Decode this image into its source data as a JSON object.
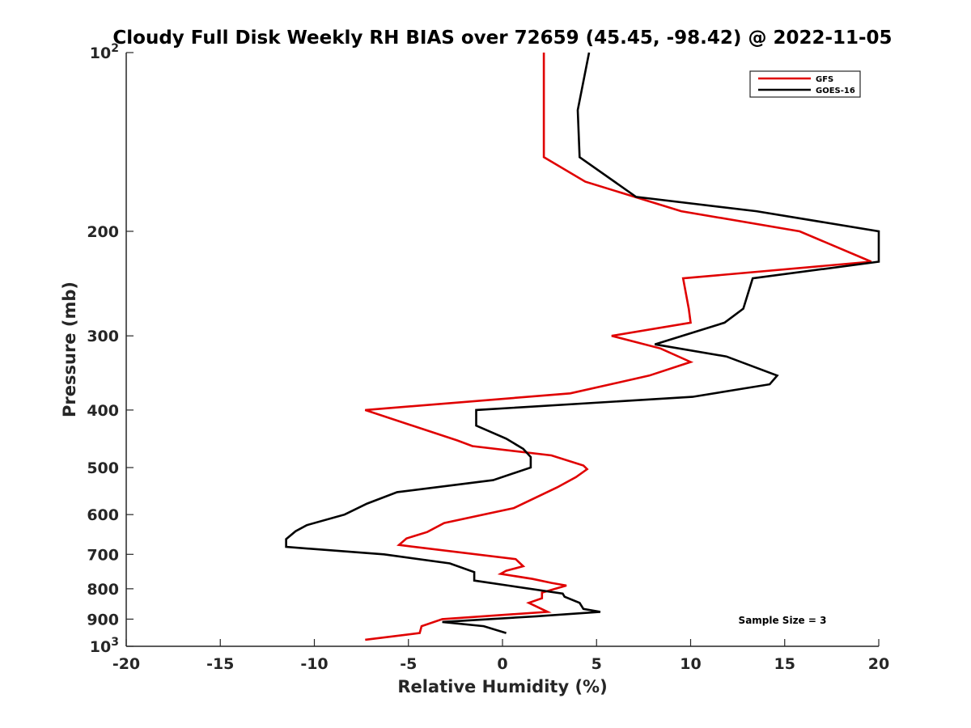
{
  "chart_data": {
    "type": "line",
    "title": "Cloudy Full Disk Weekly RH BIAS over 72659 (45.45, -98.42) @ 2022-11-05",
    "xlabel": "Relative Humidity (%)",
    "ylabel": "Pressure (mb)",
    "xlim": [
      -20,
      20
    ],
    "ylim": [
      100,
      1000
    ],
    "y_scale": "log",
    "y_reversed": true,
    "x_ticks": [
      -20,
      -15,
      -10,
      -5,
      0,
      5,
      10,
      15,
      20
    ],
    "x_tick_labels": [
      "-20",
      "-15",
      "-10",
      "-5",
      "0",
      "5",
      "10",
      "15",
      "20"
    ],
    "y_ticks": [
      100,
      200,
      300,
      400,
      500,
      600,
      700,
      800,
      900,
      1000
    ],
    "y_tick_labels": [
      {
        "base": "10",
        "sup": "2"
      },
      {
        "base": "200",
        "sup": ""
      },
      {
        "base": "300",
        "sup": ""
      },
      {
        "base": "400",
        "sup": ""
      },
      {
        "base": "500",
        "sup": ""
      },
      {
        "base": "600",
        "sup": ""
      },
      {
        "base": "700",
        "sup": ""
      },
      {
        "base": "800",
        "sup": ""
      },
      {
        "base": "900",
        "sup": ""
      },
      {
        "base": "10",
        "sup": "3"
      }
    ],
    "grid": false,
    "legend_position": "top-right",
    "annotation": "Sample Size = 3",
    "series": [
      {
        "name": "GFS",
        "color": "#e00000",
        "points": [
          [
            2.2,
            100
          ],
          [
            2.2,
            125
          ],
          [
            2.2,
            150
          ],
          [
            4.4,
            165
          ],
          [
            9.5,
            185
          ],
          [
            15.8,
            200
          ],
          [
            19.6,
            225
          ],
          [
            9.6,
            240
          ],
          [
            9.9,
            270
          ],
          [
            10.0,
            285
          ],
          [
            5.8,
            300
          ],
          [
            8.4,
            315
          ],
          [
            10.0,
            332
          ],
          [
            7.8,
            350
          ],
          [
            3.6,
            375
          ],
          [
            -7.3,
            400
          ],
          [
            -2.4,
            450
          ],
          [
            -1.6,
            460
          ],
          [
            2.6,
            477
          ],
          [
            4.3,
            496
          ],
          [
            4.5,
            503
          ],
          [
            3.9,
            519
          ],
          [
            2.9,
            540
          ],
          [
            0.6,
            585
          ],
          [
            -3.1,
            620
          ],
          [
            -4.0,
            642
          ],
          [
            -5.1,
            658
          ],
          [
            -5.5,
            675
          ],
          [
            0.7,
            713
          ],
          [
            1.1,
            733
          ],
          [
            0.2,
            746
          ],
          [
            -0.1,
            755
          ],
          [
            1.6,
            770
          ],
          [
            2.6,
            782
          ],
          [
            3.4,
            790
          ],
          [
            2.1,
            812
          ],
          [
            2.1,
            830
          ],
          [
            1.4,
            845
          ],
          [
            2.4,
            875
          ],
          [
            -3.2,
            900
          ],
          [
            -4.3,
            925
          ],
          [
            -4.4,
            950
          ],
          [
            -7.3,
            975
          ]
        ]
      },
      {
        "name": "GOES-16",
        "color": "#000000",
        "points": [
          [
            4.6,
            100
          ],
          [
            4.0,
            125
          ],
          [
            4.1,
            150
          ],
          [
            7.1,
            175
          ],
          [
            13.5,
            185
          ],
          [
            20.0,
            200
          ],
          [
            20.0,
            225
          ],
          [
            13.3,
            240
          ],
          [
            12.8,
            270
          ],
          [
            11.8,
            285
          ],
          [
            8.1,
            310
          ],
          [
            11.9,
            325
          ],
          [
            14.6,
            350
          ],
          [
            14.2,
            362
          ],
          [
            10.1,
            380
          ],
          [
            -1.4,
            400
          ],
          [
            -1.4,
            425
          ],
          [
            0.2,
            447
          ],
          [
            1.1,
            465
          ],
          [
            1.5,
            480
          ],
          [
            1.5,
            500
          ],
          [
            -0.5,
            525
          ],
          [
            -5.6,
            550
          ],
          [
            -7.2,
            575
          ],
          [
            -8.4,
            600
          ],
          [
            -10.4,
            625
          ],
          [
            -11.0,
            640
          ],
          [
            -11.5,
            660
          ],
          [
            -11.5,
            680
          ],
          [
            -6.3,
            700
          ],
          [
            -2.8,
            725
          ],
          [
            -1.5,
            750
          ],
          [
            -1.5,
            775
          ],
          [
            0.3,
            790
          ],
          [
            3.2,
            815
          ],
          [
            3.3,
            825
          ],
          [
            4.1,
            845
          ],
          [
            4.3,
            865
          ],
          [
            5.2,
            875
          ],
          [
            1.8,
            890
          ],
          [
            -3.2,
            910
          ],
          [
            -1.0,
            925
          ],
          [
            0.2,
            950
          ]
        ]
      }
    ]
  }
}
